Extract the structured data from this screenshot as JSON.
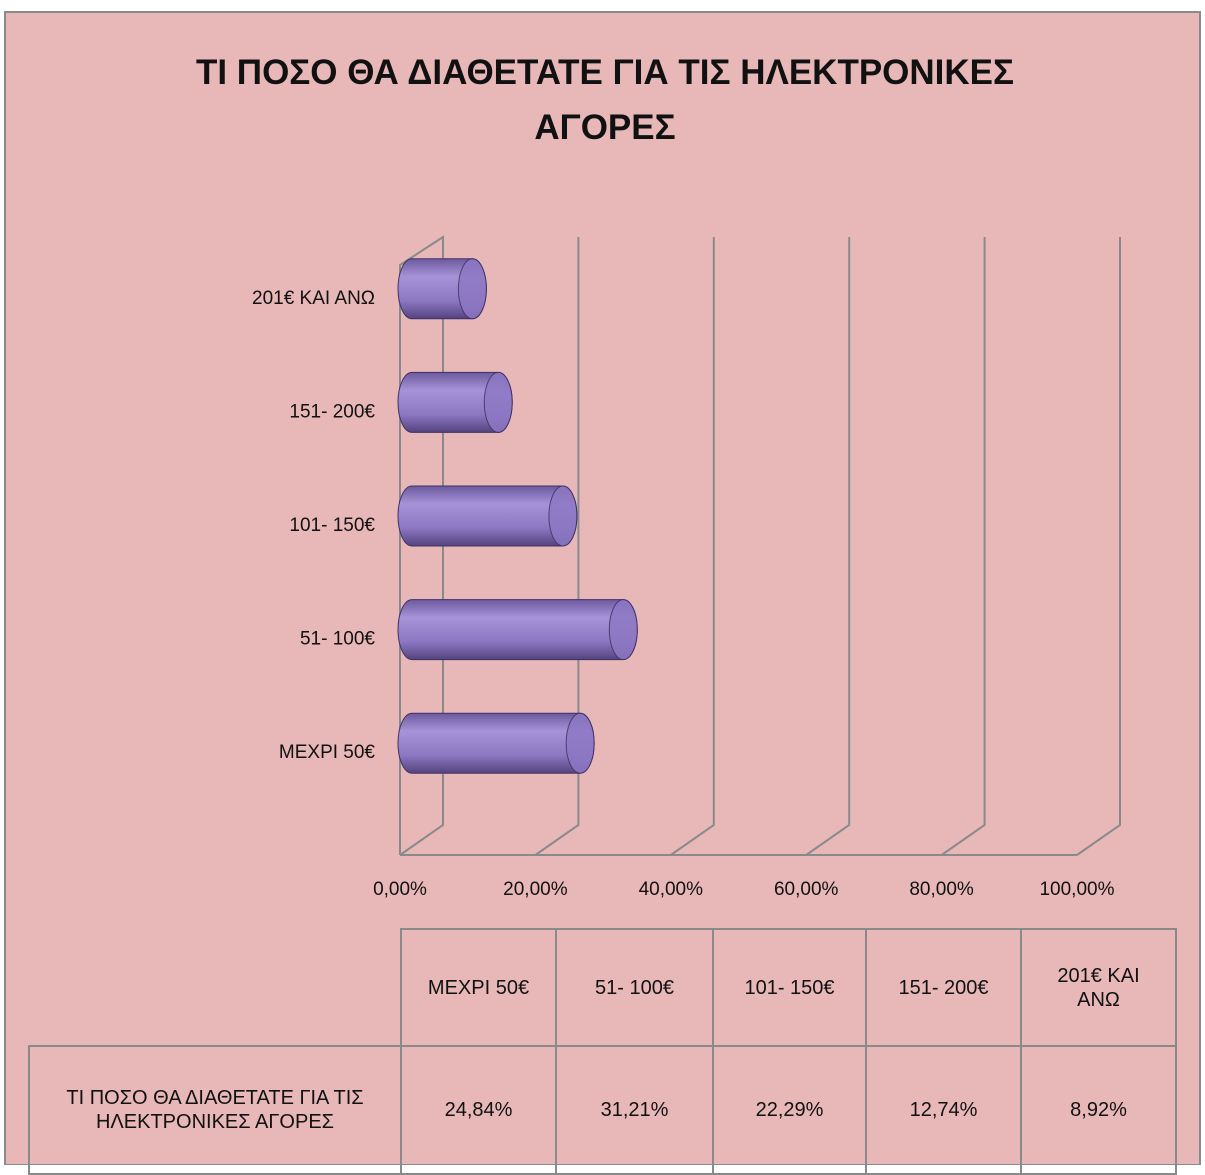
{
  "chart_data": {
    "type": "bar3d_horizontal",
    "title": "ΤΙ ΠΟΣΟ ΘΑ ΔΙΑΘΕΤΑΤΕ ΓΙΑ ΤΙΣ ΗΛΕΚΤΡΟΝΙΚΕΣ ΑΓΟΡΕΣ",
    "categories": [
      "ΜΕΧΡΙ 50€",
      "51- 100€",
      "101- 150€",
      "151- 200€",
      "201€ ΚΑΙ ΑΝΩ"
    ],
    "series": [
      {
        "name": "ΤΙ ΠΟΣΟ ΘΑ ΔΙΑΘΕΤΑΤΕ ΓΙΑ ΤΙΣ ΗΛΕΚΤΡΟΝΙΚΕΣ ΑΓΟΡΕΣ",
        "color": "#8e78c4",
        "values": [
          24.84,
          31.21,
          22.29,
          12.74,
          8.92
        ],
        "value_labels": [
          "24,84%",
          "31,21%",
          "22,29%",
          "12,74%",
          "8,92%"
        ]
      }
    ],
    "xlim": [
      0,
      100
    ],
    "xticks": [
      {
        "value": 0,
        "label": "0,00%"
      },
      {
        "value": 20,
        "label": "20,00%"
      },
      {
        "value": 40,
        "label": "40,00%"
      },
      {
        "value": 60,
        "label": "60,00%"
      },
      {
        "value": 80,
        "label": "80,00%"
      },
      {
        "value": 100,
        "label": "100,00%"
      }
    ],
    "grid": true
  }
}
